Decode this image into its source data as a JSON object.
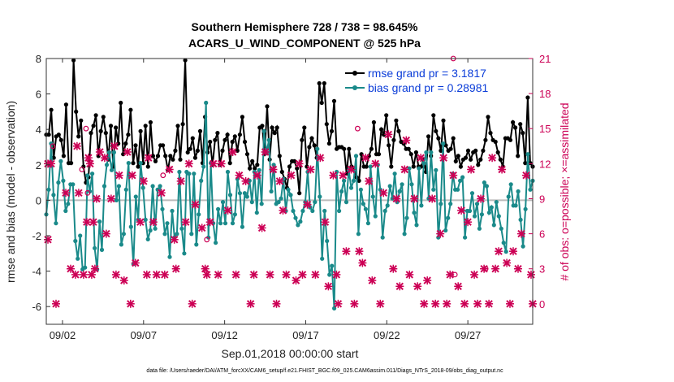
{
  "chart_data": {
    "type": "line",
    "title": "Southern Hemisphere 728 / 738 = 98.645%",
    "subtitle": "ACARS_U_WIND_COMPONENT @ 525 hPa",
    "xlabel": "Sep.01,2018 00:00:00 start",
    "ylabel": "rmse and bias (model - observation)",
    "y2label": "# of obs: o=possible; ×=assimilated",
    "footer": "data file: /Users/raeder/DAI/ATM_forcXX/CAM6_setup/f.e21.FHIST_BGC.f09_025.CAM6assim.011/Diags_NTrS_2018-09/obs_diag_output.nc",
    "xlim": [
      1,
      31
    ],
    "ylim": [
      -7,
      8
    ],
    "y2lim": [
      -1.75,
      21
    ],
    "xticks": [
      2,
      7,
      12,
      17,
      22,
      27
    ],
    "xtick_labels": [
      "09/02",
      "09/07",
      "09/12",
      "09/17",
      "09/22",
      "09/27"
    ],
    "yticks": [
      -6,
      -4,
      -2,
      0,
      2,
      4,
      6,
      8
    ],
    "y2ticks": [
      0,
      3,
      6,
      9,
      12,
      15,
      18,
      21
    ],
    "legend": [
      "rmse grand pr = 3.1817",
      "bias grand pr = 0.28981"
    ],
    "series": [
      {
        "name": "rmse",
        "color": "#000000",
        "values": [
          3.7,
          3.7,
          5.1,
          2.4,
          3.6,
          3.7,
          3.4,
          2.5,
          5.4,
          2.1,
          2.1,
          7.9,
          5,
          3.6,
          4.5,
          1.9,
          1,
          1.3,
          3.8,
          4.2,
          4.8,
          2.5,
          3.9,
          4.7,
          3.8,
          2.3,
          4.2,
          1.9,
          4.1,
          3.2,
          5.5,
          2.6,
          3.2,
          3.7,
          5.1,
          2.1,
          3.1,
          1.9,
          3.9,
          2.1,
          4.2,
          1.9,
          4.4,
          2.5,
          2.2,
          2.5,
          3.1,
          3.1,
          2.5,
          1.7,
          2.5,
          2.3,
          2.8,
          4.2,
          2.3,
          4.3,
          7.9,
          2.7,
          2.9,
          3.5,
          2.4,
          2.8,
          3.9,
          2.1,
          4.7,
          2.7,
          3.3,
          2,
          3.4,
          3.8,
          2,
          2.8,
          3.4,
          3.7,
          2.1,
          3.3,
          3.6,
          2.8,
          3.7,
          4.7,
          3.3,
          2.6,
          1.8,
          2.2,
          1.8,
          2,
          4.1,
          4.2,
          2.6,
          5.3,
          2.3,
          4.1,
          3.8,
          4.1,
          2.5,
          1.6,
          1.2,
          0.7,
          1.9,
          2.2,
          2.2,
          1.8,
          0.4,
          3.4,
          4.1,
          1.9,
          3,
          3.5,
          3.1,
          2.4,
          6.6,
          5.5,
          6.6,
          4.3,
          3.2,
          3.9,
          5.6,
          2.9,
          3,
          3,
          2.9,
          1.5,
          2.9,
          1.9,
          1.8,
          1.3,
          1.1,
          2.6,
          1.9,
          1.9,
          2.5,
          2.9,
          4.4,
          2.6,
          2.6,
          4,
          3.7,
          4.8,
          3.1,
          1.9,
          3.4,
          4.5,
          3.9,
          3.3,
          3.2,
          2.9,
          2.9,
          2.6,
          1.9,
          2.7,
          1.9,
          1.9,
          2.3,
          1.6,
          3.6,
          2.5,
          4.8,
          3.9,
          3.5,
          2.8,
          4.5,
          3.1,
          2.8,
          2.9,
          3.5,
          2.2,
          2.5,
          1.9,
          2.3,
          2.4,
          2.8,
          2.3,
          2.7,
          2.8,
          2,
          2.3,
          2.8,
          3.4,
          4.7,
          3.8,
          3.4,
          3.3,
          2.7,
          2.3,
          1.9,
          3.5,
          3.5,
          3.4,
          4.4,
          4.1,
          2.5,
          4.3,
          3.8,
          2.1,
          5.8,
          2.1,
          1.9
        ]
      },
      {
        "name": "bias",
        "color": "#1a8a8a",
        "values": [
          -0.8,
          0.6,
          3.2,
          0.3,
          -1.3,
          1,
          2.2,
          1.1,
          -0.6,
          -0.2,
          0.9,
          0.9,
          -2.3,
          -3.3,
          -2,
          -3.9,
          -3.8,
          1.4,
          0.5,
          1.5,
          -2.7,
          -3.9,
          -1.2,
          -2.8,
          0.8,
          2,
          2.7,
          1.7,
          2.7,
          0,
          0.8,
          -2.5,
          -1.9,
          0.6,
          2.1,
          -1.5,
          -3.6,
          0.2,
          -1.1,
          2.1,
          0.7,
          -1.1,
          -2.2,
          -1.7,
          0.8,
          -1.6,
          0.6,
          0.8,
          -0.5,
          -1.9,
          -1.3,
          -3.2,
          -0.6,
          -2.1,
          -1.9,
          1.6,
          -1.6,
          -3,
          1.6,
          1.5,
          -1.9,
          1.5,
          -2.5,
          -0.8,
          1.1,
          1.9,
          5.5,
          -2.1,
          2.1,
          -1.3,
          -2.4,
          -0.5,
          -1.3,
          -0.1,
          -1.3,
          1.6,
          0.3,
          -1.3,
          -0.8,
          1.2,
          0.4,
          -1.5,
          0.4,
          0.2,
          1.1,
          -0.1,
          1.6,
          -0.7,
          1.7,
          -0.2,
          3.9,
          2.7,
          3.4,
          0.5,
          2,
          -0.2,
          -0.1,
          0.1,
          1.2,
          -0.6,
          0.6,
          0.3,
          -0.6,
          -1,
          -1.4,
          -1.2,
          -0.6,
          -0.1,
          1.6,
          -0.4,
          -0.6,
          -0.1,
          2.9,
          0.2,
          -3.3,
          -0.6,
          -2.3,
          -4.2,
          -3.7,
          -6.1,
          1.6,
          -0.6,
          0.5,
          1.1,
          -0.1,
          1.7,
          0.7,
          1.1,
          2.5,
          -1.9,
          0.6,
          -0.2,
          -0.5,
          -1.3,
          1.9,
          0.2,
          -0.9,
          2,
          0.6,
          -2.1,
          -0.6,
          -0.3,
          0.8,
          0.1,
          1.5,
          -0.1,
          0.5,
          0.9,
          -1.9,
          -1,
          1.8,
          0.9,
          -0.7,
          -1.4,
          1.8,
          -0.3,
          2.1,
          2.7,
          0.1,
          2.7,
          0.6,
          1.7,
          -2.1,
          -0.2,
          3.2,
          -1.7,
          -1,
          -0.2,
          1.5,
          0.6,
          0.6,
          1.1,
          1.3,
          -2.1,
          -0.6,
          -0.6,
          0.4,
          -0.9,
          -0.2,
          -1.6,
          -0.8,
          1,
          0.8,
          -0.7,
          -0.4,
          -1.4,
          -0.1,
          -0.9,
          -1.6,
          -2.4,
          -2.9,
          0.2,
          0.9,
          -0.3,
          -0.3,
          0.5,
          -1.1,
          -2.6,
          -0.5,
          2.6,
          0.6,
          1.1
        ]
      }
    ],
    "obs_possible": [
      [
        1.4,
        13.5
      ],
      [
        3.2,
        11.5
      ],
      [
        3.45,
        15.0
      ],
      [
        3.55,
        9.5
      ],
      [
        8.2,
        11.0
      ],
      [
        10.9,
        5.5
      ],
      [
        20.2,
        15.0
      ],
      [
        26.1,
        21.0
      ],
      [
        26.2,
        2.5
      ],
      [
        28.1,
        3.0
      ]
    ],
    "obs_assimilated": [
      [
        1.1,
        12.0
      ],
      [
        1.1,
        5.5
      ],
      [
        1.3,
        12.0
      ],
      [
        1.6,
        0.0
      ],
      [
        2.2,
        9.5
      ],
      [
        2.5,
        3.0
      ],
      [
        2.8,
        2.5
      ],
      [
        2.9,
        13.5
      ],
      [
        3.0,
        9.5
      ],
      [
        3.3,
        2.5
      ],
      [
        3.5,
        7.0
      ],
      [
        3.6,
        12.5
      ],
      [
        3.7,
        12.0
      ],
      [
        3.8,
        2.5
      ],
      [
        3.9,
        7.0
      ],
      [
        4.0,
        3.0
      ],
      [
        4.1,
        9.0
      ],
      [
        4.3,
        13.0
      ],
      [
        4.6,
        12.5
      ],
      [
        4.7,
        6.0
      ],
      [
        5.0,
        9.0
      ],
      [
        5.2,
        13.5
      ],
      [
        5.3,
        2.5
      ],
      [
        5.5,
        11.0
      ],
      [
        5.8,
        2.0
      ],
      [
        6.0,
        13.0
      ],
      [
        6.2,
        0.0
      ],
      [
        6.3,
        11.0
      ],
      [
        6.5,
        3.5
      ],
      [
        6.8,
        7.0
      ],
      [
        7.0,
        10.5
      ],
      [
        7.2,
        2.5
      ],
      [
        7.3,
        12.5
      ],
      [
        7.6,
        7.0
      ],
      [
        7.8,
        2.5
      ],
      [
        8.1,
        9.5
      ],
      [
        8.3,
        2.5
      ],
      [
        8.6,
        11.5
      ],
      [
        8.9,
        5.5
      ],
      [
        9.0,
        3.0
      ],
      [
        9.3,
        10.5
      ],
      [
        9.6,
        7.0
      ],
      [
        9.8,
        12.0
      ],
      [
        10.0,
        0.0
      ],
      [
        10.2,
        8.5
      ],
      [
        10.6,
        6.5
      ],
      [
        10.8,
        3.0
      ],
      [
        10.9,
        2.5
      ],
      [
        11.1,
        7.0
      ],
      [
        11.3,
        12.0
      ],
      [
        11.6,
        2.5
      ],
      [
        11.8,
        12.0
      ],
      [
        12.2,
        8.0
      ],
      [
        12.5,
        13.0
      ],
      [
        12.7,
        2.5
      ],
      [
        12.9,
        11.0
      ],
      [
        13.3,
        10.5
      ],
      [
        13.6,
        0.0
      ],
      [
        13.8,
        2.5
      ],
      [
        14.0,
        11.0
      ],
      [
        14.3,
        6.5
      ],
      [
        14.5,
        13.0
      ],
      [
        14.8,
        2.5
      ],
      [
        15.0,
        11.5
      ],
      [
        15.2,
        0.0
      ],
      [
        15.4,
        10.5
      ],
      [
        15.6,
        8.0
      ],
      [
        15.8,
        2.5
      ],
      [
        16.1,
        11.0
      ],
      [
        16.4,
        2.0
      ],
      [
        16.6,
        12.0
      ],
      [
        16.8,
        2.5
      ],
      [
        17.1,
        8.5
      ],
      [
        17.3,
        11.5
      ],
      [
        17.6,
        2.5
      ],
      [
        17.9,
        12.5
      ],
      [
        18.2,
        7.0
      ],
      [
        18.4,
        1.5
      ],
      [
        18.7,
        11.0
      ],
      [
        18.9,
        2.5
      ],
      [
        19.0,
        0.0
      ],
      [
        19.3,
        11.0
      ],
      [
        19.5,
        4.5
      ],
      [
        19.8,
        11.5
      ],
      [
        20.0,
        0.0
      ],
      [
        20.3,
        4.5
      ],
      [
        20.5,
        3.5
      ],
      [
        20.7,
        12.5
      ],
      [
        20.9,
        10.5
      ],
      [
        21.1,
        2.0
      ],
      [
        21.3,
        12.0
      ],
      [
        21.6,
        0.0
      ],
      [
        21.8,
        9.5
      ],
      [
        22.1,
        14.5
      ],
      [
        22.4,
        3.0
      ],
      [
        22.6,
        9.0
      ],
      [
        22.8,
        1.5
      ],
      [
        23.1,
        11.5
      ],
      [
        23.2,
        14.0
      ],
      [
        23.4,
        2.5
      ],
      [
        23.7,
        9.0
      ],
      [
        23.9,
        1.5
      ],
      [
        24.1,
        12.5
      ],
      [
        24.3,
        0.0
      ],
      [
        24.5,
        2.0
      ],
      [
        24.8,
        9.0
      ],
      [
        25.0,
        0.0
      ],
      [
        25.3,
        6.0
      ],
      [
        25.5,
        12.5
      ],
      [
        25.7,
        0.0
      ],
      [
        25.9,
        2.5
      ],
      [
        26.1,
        11.0
      ],
      [
        26.4,
        1.5
      ],
      [
        26.6,
        8.0
      ],
      [
        26.8,
        0.0
      ],
      [
        27.0,
        7.0
      ],
      [
        27.2,
        11.5
      ],
      [
        27.4,
        2.5
      ],
      [
        27.6,
        0.0
      ],
      [
        27.8,
        9.0
      ],
      [
        28.0,
        3.0
      ],
      [
        28.3,
        0.0
      ],
      [
        28.5,
        12.5
      ],
      [
        28.7,
        3.0
      ],
      [
        28.9,
        4.5
      ],
      [
        29.1,
        11.5
      ],
      [
        29.4,
        3.5
      ],
      [
        29.6,
        0.0
      ],
      [
        29.8,
        4.5
      ],
      [
        30.1,
        3.0
      ],
      [
        30.3,
        6.0
      ],
      [
        30.6,
        11.0
      ],
      [
        30.9,
        2.5
      ],
      [
        31.0,
        0.0
      ]
    ]
  }
}
